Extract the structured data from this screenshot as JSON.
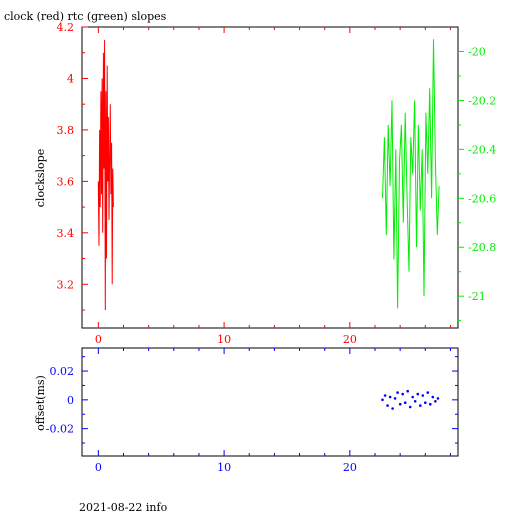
{
  "title": "clock (red) rtc (green) slopes",
  "footer": "2021-08-22 info",
  "colors": {
    "clock": "#ff0000",
    "rtc": "#00ee00",
    "offset": "#0000ff",
    "frame": "#000000"
  },
  "chart_data": [
    {
      "type": "line",
      "panel": "top",
      "ylabel": "clockslope",
      "xlim": [
        -1.3,
        28.6
      ],
      "ylim_left": [
        3.03,
        4.2
      ],
      "ylim_right": [
        -21.13,
        -19.9
      ],
      "x_ticks": [
        0,
        10,
        20
      ],
      "x_tick_labels": [
        "0",
        "10",
        "20"
      ],
      "y_left_ticks": [
        3.2,
        3.4,
        3.6,
        3.8,
        4,
        4.2
      ],
      "y_left_tick_labels": [
        "3.2",
        "3.4",
        "3.6",
        "3.8",
        "4",
        "4.2"
      ],
      "y_right_ticks": [
        -21,
        -20.8,
        -20.6,
        -20.4,
        -20.2,
        -20
      ],
      "y_right_tick_labels": [
        "-21",
        "-20.8",
        "-20.6",
        "-20.4",
        "-20.2",
        "-20"
      ],
      "series": [
        {
          "axis": "left",
          "x": [
            0.0,
            0.05,
            0.1,
            0.15,
            0.2,
            0.25,
            0.3,
            0.35,
            0.4,
            0.45,
            0.5,
            0.55,
            0.6,
            0.65,
            0.7,
            0.75,
            0.8,
            0.85,
            0.9,
            0.95,
            1.0,
            1.05,
            1.1,
            1.15,
            1.2
          ],
          "y": [
            3.6,
            3.35,
            3.8,
            3.5,
            3.95,
            3.55,
            4.0,
            3.4,
            4.1,
            3.65,
            4.15,
            3.1,
            3.95,
            3.3,
            4.05,
            3.6,
            3.85,
            3.45,
            3.7,
            3.9,
            3.55,
            3.75,
            3.2,
            3.65,
            3.5
          ]
        },
        {
          "axis": "right",
          "x": [
            22.6,
            22.75,
            22.9,
            23.05,
            23.2,
            23.35,
            23.5,
            23.65,
            23.8,
            23.95,
            24.1,
            24.25,
            24.4,
            24.55,
            24.7,
            24.85,
            25.0,
            25.15,
            25.3,
            25.45,
            25.6,
            25.75,
            25.9,
            26.05,
            26.2,
            26.35,
            26.5,
            26.65,
            26.8,
            26.95,
            27.1
          ],
          "y": [
            -20.6,
            -20.35,
            -20.75,
            -20.3,
            -20.55,
            -20.2,
            -20.85,
            -20.4,
            -21.05,
            -20.45,
            -20.3,
            -20.7,
            -20.25,
            -20.6,
            -20.9,
            -20.35,
            -20.5,
            -20.2,
            -20.8,
            -20.3,
            -20.65,
            -20.4,
            -21.0,
            -20.25,
            -20.5,
            -20.15,
            -20.6,
            -19.95,
            -20.45,
            -20.75,
            -20.55
          ]
        }
      ]
    },
    {
      "type": "scatter",
      "panel": "bottom",
      "ylabel": "offset(ms)",
      "xlim": [
        -1.3,
        28.6
      ],
      "ylim": [
        -0.039,
        0.036
      ],
      "x_ticks": [
        0,
        10,
        20
      ],
      "x_tick_labels": [
        "0",
        "10",
        "20"
      ],
      "y_ticks": [
        -0.02,
        0,
        0.02
      ],
      "y_tick_labels": [
        "-0.02",
        "0",
        "0.02"
      ],
      "series": [
        {
          "x": [
            22.6,
            22.8,
            23.0,
            23.2,
            23.4,
            23.6,
            23.8,
            24.0,
            24.2,
            24.4,
            24.6,
            24.8,
            25.0,
            25.2,
            25.4,
            25.6,
            25.8,
            26.0,
            26.2,
            26.4,
            26.6,
            26.8,
            27.0
          ],
          "y": [
            0.0,
            0.003,
            -0.004,
            0.002,
            -0.006,
            0.001,
            0.005,
            -0.003,
            0.004,
            -0.002,
            0.006,
            -0.005,
            0.002,
            -0.001,
            0.004,
            -0.004,
            0.003,
            -0.002,
            0.005,
            -0.003,
            0.002,
            -0.001,
            0.001
          ]
        }
      ]
    }
  ]
}
